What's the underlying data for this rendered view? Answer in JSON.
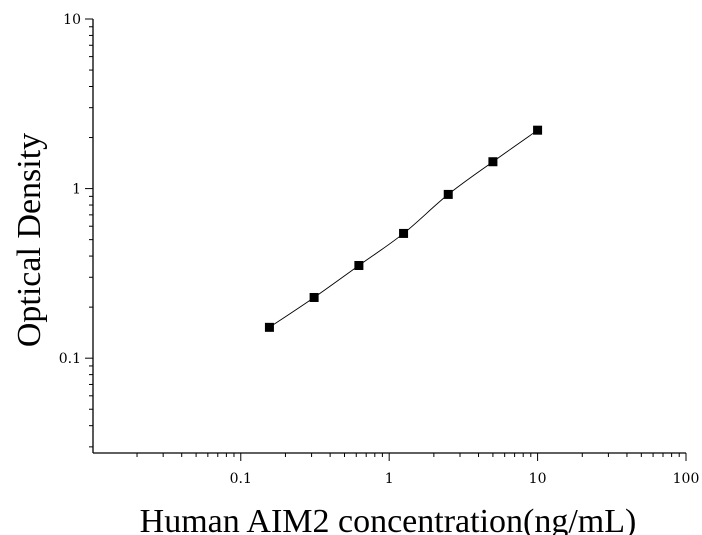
{
  "chart_data": {
    "type": "scatter",
    "xlabel": "Human AIM2 concentration(ng/mL)",
    "ylabel": "Optical Density",
    "xscale": "log",
    "yscale": "log",
    "xlim": [
      0.0101,
      100
    ],
    "ylim": [
      0.0276,
      10
    ],
    "x_ticks": [
      {
        "value": 0.1,
        "label": "0.1"
      },
      {
        "value": 1,
        "label": "1"
      },
      {
        "value": 10,
        "label": "10"
      },
      {
        "value": 100,
        "label": "100"
      }
    ],
    "y_ticks": [
      {
        "value": 0.1,
        "label": "0.1"
      },
      {
        "value": 1,
        "label": "1"
      },
      {
        "value": 10,
        "label": "10"
      }
    ],
    "grid": false,
    "series": [
      {
        "marker": "square",
        "color": "#000000",
        "fit_line": true,
        "points": [
          {
            "x": 0.156,
            "y": 0.152
          },
          {
            "x": 0.312,
            "y": 0.228
          },
          {
            "x": 0.625,
            "y": 0.352
          },
          {
            "x": 1.25,
            "y": 0.544
          },
          {
            "x": 2.5,
            "y": 0.924
          },
          {
            "x": 5,
            "y": 1.44
          },
          {
            "x": 10,
            "y": 2.21
          }
        ]
      }
    ]
  }
}
